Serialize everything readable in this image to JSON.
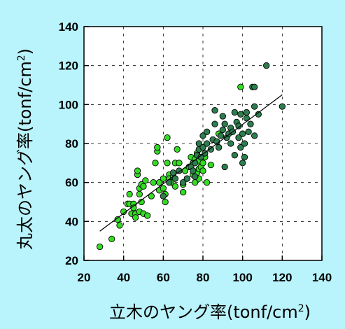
{
  "chart_data": {
    "type": "scatter",
    "title": "",
    "xlabel": "立木のヤング率(tonf/cm²)",
    "ylabel": "丸太のヤング率(tonf/cm²)",
    "xlabel_parts": {
      "main": "立木のヤング率(tonf/cm",
      "sup": "2",
      "end": ")"
    },
    "ylabel_parts": {
      "main": "丸太のヤング率(tonf/cm",
      "sup": "2",
      "end": ")"
    },
    "xlim": [
      20,
      140
    ],
    "ylim": [
      20,
      140
    ],
    "xticks": [
      "20",
      "40",
      "60",
      "80",
      "100",
      "120",
      "140"
    ],
    "yticks": [
      "20",
      "40",
      "60",
      "80",
      "100",
      "120",
      "140"
    ],
    "grid": "dashed",
    "colors": {
      "bright": "#33dd22",
      "dark": "#2e7d4f",
      "stroke": "#000000",
      "background": "#b9f3fb",
      "plot_bg": "#ffffff"
    },
    "trendline": {
      "x": [
        28,
        120
      ],
      "y": [
        35,
        105
      ]
    },
    "series": [
      {
        "color": "#33dd22",
        "points": [
          [
            28,
            27
          ],
          [
            34,
            31
          ],
          [
            37,
            41
          ],
          [
            38,
            38
          ],
          [
            40,
            45
          ],
          [
            42,
            49
          ],
          [
            43,
            54
          ],
          [
            43,
            49
          ],
          [
            44,
            44
          ],
          [
            45,
            49
          ],
          [
            45,
            47
          ],
          [
            46,
            44
          ],
          [
            46,
            42
          ],
          [
            47,
            64
          ],
          [
            47,
            66
          ],
          [
            48,
            57
          ],
          [
            48,
            54
          ],
          [
            48,
            45
          ],
          [
            49,
            59
          ],
          [
            49,
            50
          ],
          [
            50,
            58
          ],
          [
            50,
            44
          ],
          [
            51,
            61
          ],
          [
            52,
            43
          ],
          [
            54,
            53
          ],
          [
            55,
            60
          ],
          [
            56,
            70
          ],
          [
            57,
            76
          ],
          [
            57,
            78
          ],
          [
            58,
            60
          ],
          [
            58,
            56
          ],
          [
            60,
            62
          ],
          [
            60,
            57
          ],
          [
            61,
            54
          ],
          [
            61,
            50
          ],
          [
            62,
            70
          ],
          [
            62,
            83
          ],
          [
            63,
            64
          ],
          [
            63,
            62
          ],
          [
            64,
            60
          ],
          [
            65,
            63
          ],
          [
            66,
            58
          ],
          [
            66,
            70
          ],
          [
            67,
            77
          ],
          [
            68,
            70
          ],
          [
            70,
            59
          ],
          [
            70,
            55
          ],
          [
            71,
            66
          ],
          [
            72,
            62
          ],
          [
            73,
            68
          ],
          [
            74,
            73
          ],
          [
            75,
            70
          ],
          [
            75,
            64
          ],
          [
            76,
            72
          ],
          [
            76,
            60
          ],
          [
            77,
            65
          ],
          [
            77,
            75
          ],
          [
            78,
            71
          ],
          [
            78,
            67
          ],
          [
            78,
            62
          ],
          [
            79,
            68
          ],
          [
            80,
            70
          ],
          [
            80,
            66
          ],
          [
            81,
            73
          ],
          [
            82,
            60
          ],
          [
            84,
            69
          ],
          [
            88,
            85
          ],
          [
            99,
            109
          ]
        ]
      },
      {
        "color": "#2e7d4f",
        "points": [
          [
            60,
            53
          ],
          [
            63,
            60
          ],
          [
            65,
            65
          ],
          [
            66,
            62
          ],
          [
            68,
            66
          ],
          [
            70,
            60
          ],
          [
            72,
            62
          ],
          [
            74,
            68
          ],
          [
            75,
            66
          ],
          [
            76,
            63
          ],
          [
            76,
            70
          ],
          [
            77,
            74
          ],
          [
            78,
            77
          ],
          [
            78,
            80
          ],
          [
            79,
            73
          ],
          [
            80,
            78
          ],
          [
            80,
            84
          ],
          [
            81,
            75
          ],
          [
            82,
            80
          ],
          [
            82,
            86
          ],
          [
            84,
            77
          ],
          [
            85,
            82
          ],
          [
            86,
            90
          ],
          [
            86,
            97
          ],
          [
            87,
            81
          ],
          [
            88,
            78
          ],
          [
            89,
            84
          ],
          [
            90,
            87
          ],
          [
            90,
            94
          ],
          [
            91,
            68
          ],
          [
            91,
            90
          ],
          [
            92,
            83
          ],
          [
            93,
            85
          ],
          [
            94,
            80
          ],
          [
            94,
            88
          ],
          [
            95,
            86
          ],
          [
            96,
            74
          ],
          [
            96,
            96
          ],
          [
            97,
            91
          ],
          [
            98,
            83
          ],
          [
            98,
            89
          ],
          [
            99,
            78
          ],
          [
            99,
            95
          ],
          [
            100,
            70
          ],
          [
            100,
            85
          ],
          [
            101,
            73
          ],
          [
            101,
            80
          ],
          [
            102,
            93
          ],
          [
            102,
            96
          ],
          [
            103,
            86
          ],
          [
            104,
            90
          ],
          [
            105,
            109
          ],
          [
            106,
            109
          ],
          [
            106,
            99
          ],
          [
            106,
            84
          ],
          [
            108,
            95
          ],
          [
            112,
            120
          ],
          [
            120,
            99
          ]
        ]
      }
    ]
  }
}
